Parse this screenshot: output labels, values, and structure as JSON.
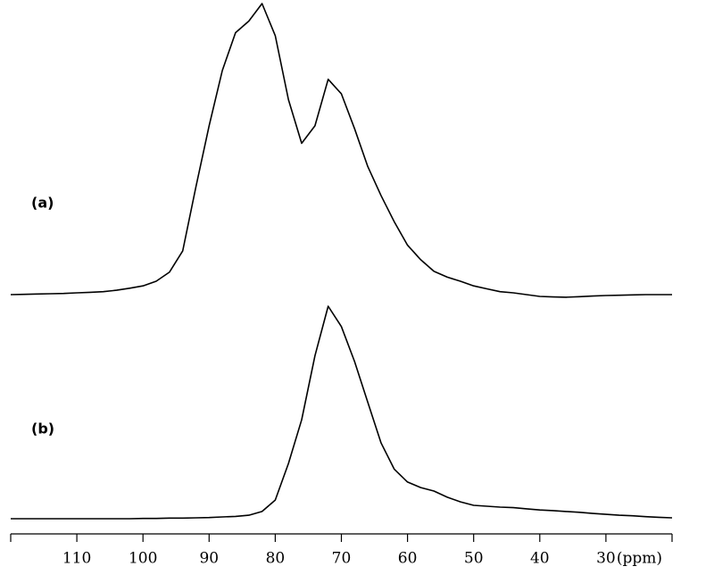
{
  "chart_data": {
    "type": "line",
    "x_label": "(ppm)",
    "x": [
      120,
      118,
      116,
      114,
      112,
      110,
      108,
      106,
      104,
      102,
      100,
      98,
      96,
      94,
      92,
      90,
      88,
      86,
      84,
      82,
      80,
      78,
      76,
      74,
      72,
      70,
      68,
      66,
      64,
      62,
      60,
      58,
      56,
      54,
      52,
      50,
      48,
      46,
      44,
      42,
      40,
      38,
      36,
      34,
      32,
      30,
      28,
      26,
      24,
      22,
      20
    ],
    "xlim": [
      120,
      20
    ],
    "xticks": [
      110,
      100,
      90,
      80,
      70,
      60,
      50,
      40,
      30
    ],
    "ylim": [
      0,
      100
    ],
    "series": [
      {
        "name": "(a)",
        "color": "#000000",
        "values": [
          0,
          0.1,
          0.2,
          0.3,
          0.4,
          0.6,
          0.8,
          1.0,
          1.5,
          2.2,
          3,
          4.6,
          7.7,
          15,
          37,
          58,
          77,
          90,
          94,
          100,
          89,
          67,
          52,
          58,
          74,
          69,
          57,
          44,
          34,
          25,
          17,
          12,
          8,
          6,
          4.6,
          3,
          2,
          1,
          0.6,
          0,
          -0.6,
          -0.8,
          -0.9,
          -0.7,
          -0.5,
          -0.3,
          -0.2,
          -0.1,
          0,
          0,
          0
        ]
      },
      {
        "name": "(b)",
        "color": "#000000",
        "values": [
          0,
          0,
          0,
          0,
          0,
          0,
          0,
          0,
          0,
          0,
          0.1,
          0.1,
          0.2,
          0.2,
          0.3,
          0.4,
          0.6,
          0.8,
          1.2,
          2.5,
          6.4,
          19,
          34,
          56,
          73,
          66,
          54,
          40,
          26,
          17,
          12.6,
          10.7,
          9.5,
          7.4,
          5.8,
          4.6,
          4.3,
          4,
          3.8,
          3.4,
          3,
          2.8,
          2.5,
          2.2,
          1.8,
          1.5,
          1.2,
          1,
          0.7,
          0.5,
          0.3
        ]
      }
    ]
  }
}
